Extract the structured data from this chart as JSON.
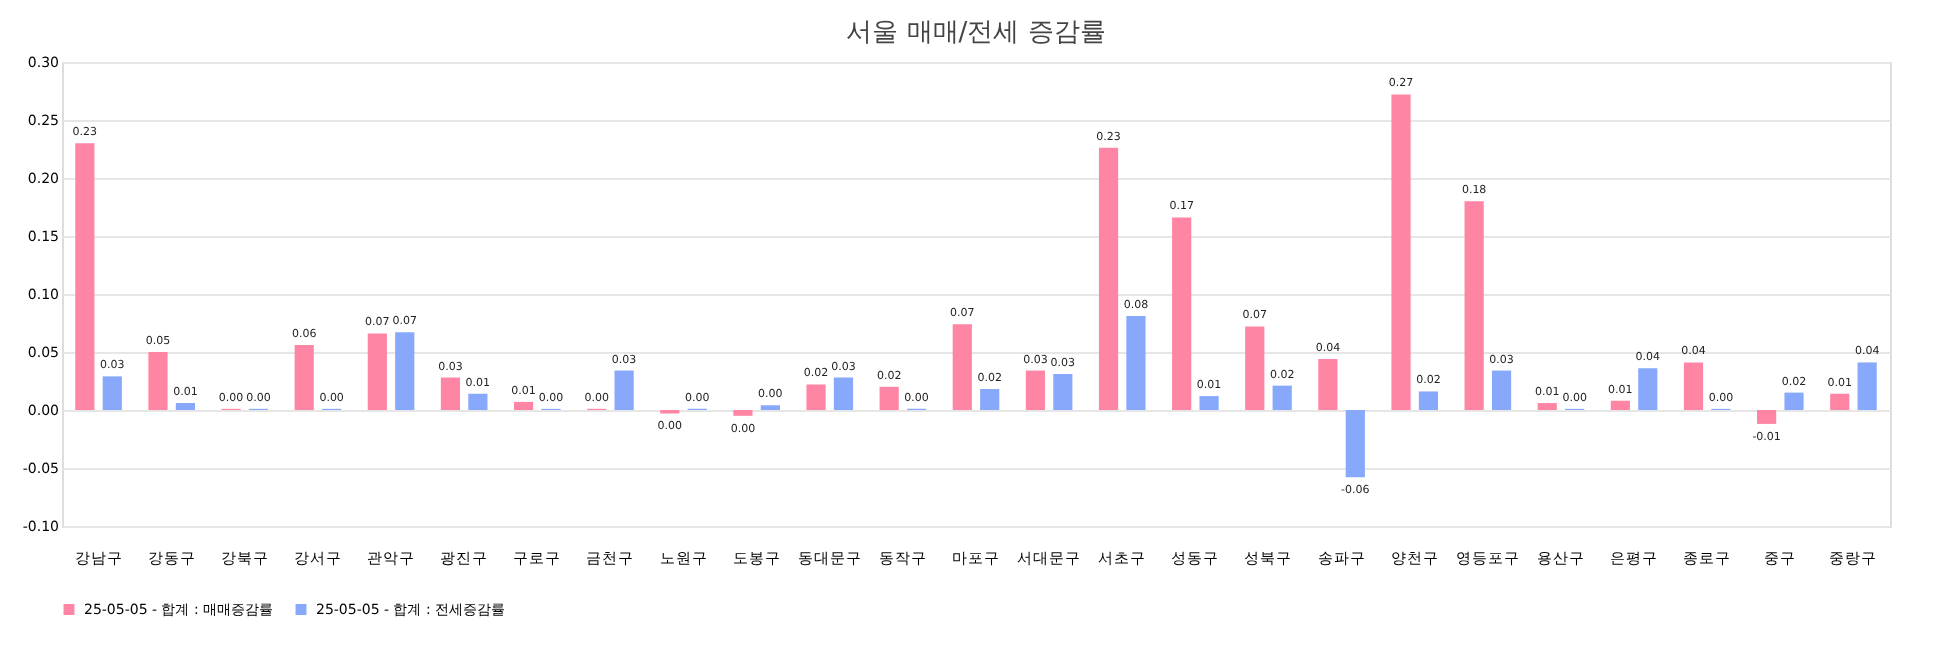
{
  "chart_data": {
    "type": "bar",
    "title": "서울 매매/전세 증감률",
    "categories": [
      "강남구",
      "강동구",
      "강북구",
      "강서구",
      "관악구",
      "광진구",
      "구로구",
      "금천구",
      "노원구",
      "도봉구",
      "동대문구",
      "동작구",
      "마포구",
      "서대문구",
      "서초구",
      "성동구",
      "성북구",
      "송파구",
      "양천구",
      "영등포구",
      "용산구",
      "은평구",
      "종로구",
      "중구",
      "중랑구"
    ],
    "series": [
      {
        "name": "25-05-05 - 합계 : 매매증감률",
        "color": "#ff85a4",
        "values": [
          0.23,
          0.05,
          0.001,
          0.056,
          0.066,
          0.028,
          0.007,
          0.001,
          -0.003,
          -0.005,
          0.022,
          0.02,
          0.074,
          0.034,
          0.226,
          0.166,
          0.072,
          0.044,
          0.272,
          0.18,
          0.006,
          0.008,
          0.041,
          -0.012,
          0.014
        ],
        "value_labels": [
          "0.23",
          "0.05",
          "0.00",
          "0.06",
          "0.07",
          "0.03",
          "0.01",
          "0.00",
          "0.00",
          "0.00",
          "0.02",
          "0.02",
          "0.07",
          "0.03",
          "0.23",
          "0.17",
          "0.07",
          "0.04",
          "0.27",
          "0.18",
          "0.01",
          "0.01",
          "0.04",
          "-0.01",
          "0.01"
        ]
      },
      {
        "name": "25-05-05 - 합계 : 전세증감률",
        "color": "#88a8fc",
        "values": [
          0.029,
          0.006,
          0.001,
          0.001,
          0.067,
          0.014,
          0.001,
          0.034,
          0.001,
          0.004,
          0.028,
          0.001,
          0.018,
          0.031,
          0.081,
          0.012,
          0.021,
          -0.058,
          0.016,
          0.034,
          0.001,
          0.036,
          0.001,
          0.015,
          0.041
        ],
        "value_labels": [
          "0.03",
          "0.01",
          "0.00",
          "0.00",
          "0.07",
          "0.01",
          "0.00",
          "0.03",
          "0.00",
          "0.00",
          "0.03",
          "0.00",
          "0.02",
          "0.03",
          "0.08",
          "0.01",
          "0.02",
          "-0.06",
          "0.02",
          "0.03",
          "0.00",
          "0.04",
          "0.00",
          "0.02",
          "0.04"
        ]
      }
    ],
    "ylim": [
      -0.1,
      0.3
    ],
    "yticks": [
      {
        "value": -0.1,
        "label": "-0.10"
      },
      {
        "value": -0.05,
        "label": "-0.05"
      },
      {
        "value": 0,
        "label": "0.00"
      },
      {
        "value": 0.05,
        "label": "0.05"
      },
      {
        "value": 0.1,
        "label": "0.10"
      },
      {
        "value": 0.15,
        "label": "0.15"
      },
      {
        "value": 0.2,
        "label": "0.20"
      },
      {
        "value": 0.25,
        "label": "0.25"
      },
      {
        "value": 0.3,
        "label": "0.30"
      }
    ],
    "grid": "y",
    "legend": "bottom"
  }
}
